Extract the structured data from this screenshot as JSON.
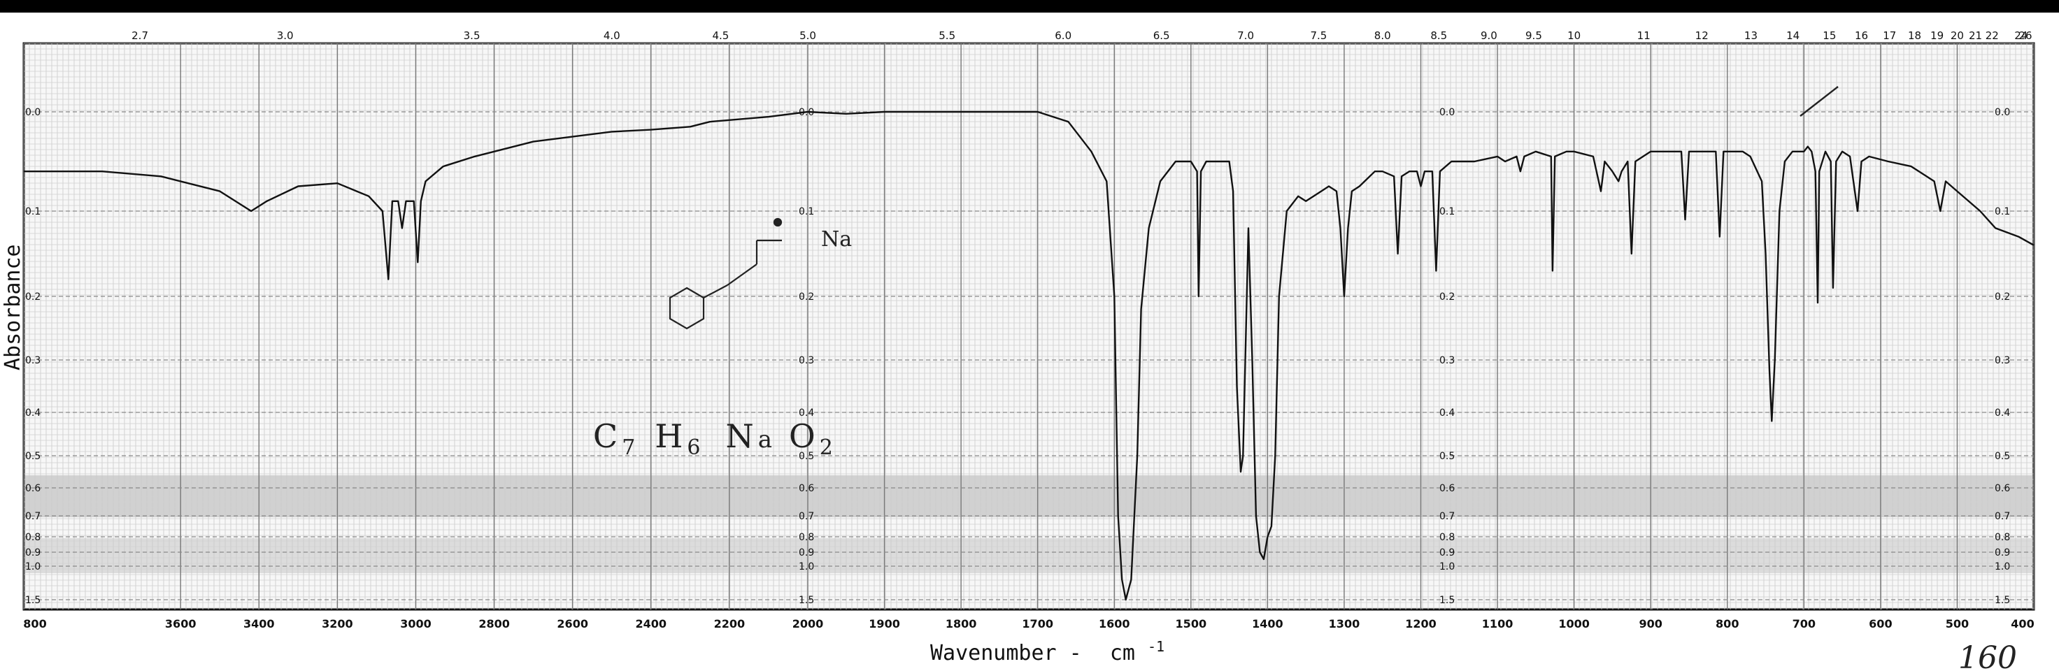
{
  "chart_data": {
    "type": "line",
    "xlabel": "Wavenumber -",
    "xlabel_unit": "cm",
    "xlabel_unit_sup": "-1",
    "ylabel": "Absorbance",
    "x_axis": "wavenumber (cm-1), descending left to right",
    "xlim": [
      4000,
      400
    ],
    "x_scale": "piecewise: 4000-2000 and 2000-400 at different spacing",
    "ylim": [
      0.0,
      1.5
    ],
    "y_scale": "absorbance, nonlinear spacing (transmittance grid)",
    "grid": true,
    "x_ticks_bottom": [
      "800",
      "3600",
      "3400",
      "3200",
      "3000",
      "2800",
      "2600",
      "2400",
      "2200",
      "2000",
      "1900",
      "1800",
      "1700",
      "1600",
      "1500",
      "1400",
      "1300",
      "1200",
      "1100",
      "1000",
      "900",
      "800",
      "700",
      "600",
      "500",
      "400"
    ],
    "x_ticks_top_microns": [
      "2.7",
      "3.0",
      "3.5",
      "4.0",
      "4.5",
      "5.0",
      "5.5",
      "6.0",
      "6.5",
      "7.0",
      "7.5",
      "8.0",
      "8.5",
      "9.0",
      "9.5",
      "10",
      "11",
      "12",
      "13",
      "14",
      "15",
      "16",
      "17",
      "18",
      "19",
      "20",
      "21",
      "22",
      "24",
      "26"
    ],
    "y_ticks_left": [
      "0.0",
      "0.1",
      "0.2",
      "0.3",
      "0.4",
      "0.5",
      "0.6",
      "0.7",
      "0.8",
      "0.9",
      "1.0",
      "1.5"
    ],
    "y_ticks_mid1": [
      "0.0",
      "0.1",
      "0.2",
      "0.3",
      "0.4",
      "0.5",
      "0.6",
      "0.7",
      "0.8",
      "0.9",
      "1.0",
      "1.5"
    ],
    "y_ticks_mid2": [
      "0.0",
      "0.1",
      "0.2",
      "0.3",
      "0.4",
      "0.5",
      "0.6",
      "0.7",
      "0.8",
      "0.9",
      "1.0",
      "1.5"
    ],
    "y_ticks_right": [
      "0.0",
      "0.1",
      "0.2",
      "0.3",
      "0.4",
      "0.5",
      "0.6",
      "0.7",
      "0.8",
      "0.9",
      "1.0",
      "1.5"
    ],
    "series": [
      {
        "color": "#111111",
        "points": [
          [
            4000,
            0.06
          ],
          [
            3800,
            0.06
          ],
          [
            3650,
            0.065
          ],
          [
            3500,
            0.08
          ],
          [
            3420,
            0.1
          ],
          [
            3380,
            0.09
          ],
          [
            3300,
            0.075
          ],
          [
            3200,
            0.072
          ],
          [
            3120,
            0.085
          ],
          [
            3085,
            0.1
          ],
          [
            3070,
            0.18
          ],
          [
            3060,
            0.09
          ],
          [
            3045,
            0.09
          ],
          [
            3035,
            0.12
          ],
          [
            3025,
            0.09
          ],
          [
            3005,
            0.09
          ],
          [
            2995,
            0.16
          ],
          [
            2987,
            0.09
          ],
          [
            2975,
            0.07
          ],
          [
            2930,
            0.055
          ],
          [
            2850,
            0.045
          ],
          [
            2700,
            0.03
          ],
          [
            2500,
            0.02
          ],
          [
            2400,
            0.018
          ],
          [
            2300,
            0.015
          ],
          [
            2250,
            0.01
          ],
          [
            2100,
            0.005
          ],
          [
            2000,
            0.0
          ],
          [
            1950,
            0.002
          ],
          [
            1900,
            0.0
          ],
          [
            1800,
            0.0
          ],
          [
            1700,
            0.0
          ],
          [
            1660,
            0.01
          ],
          [
            1630,
            0.04
          ],
          [
            1610,
            0.07
          ],
          [
            1600,
            0.2
          ],
          [
            1595,
            0.7
          ],
          [
            1590,
            1.2
          ],
          [
            1585,
            1.5
          ],
          [
            1578,
            1.2
          ],
          [
            1570,
            0.5
          ],
          [
            1565,
            0.22
          ],
          [
            1555,
            0.12
          ],
          [
            1540,
            0.07
          ],
          [
            1520,
            0.05
          ],
          [
            1500,
            0.05
          ],
          [
            1492,
            0.06
          ],
          [
            1490,
            0.2
          ],
          [
            1487,
            0.06
          ],
          [
            1480,
            0.05
          ],
          [
            1470,
            0.05
          ],
          [
            1450,
            0.05
          ],
          [
            1445,
            0.08
          ],
          [
            1440,
            0.35
          ],
          [
            1435,
            0.55
          ],
          [
            1432,
            0.5
          ],
          [
            1425,
            0.12
          ],
          [
            1420,
            0.3
          ],
          [
            1415,
            0.7
          ],
          [
            1410,
            0.9
          ],
          [
            1405,
            0.95
          ],
          [
            1400,
            0.8
          ],
          [
            1395,
            0.75
          ],
          [
            1390,
            0.5
          ],
          [
            1385,
            0.2
          ],
          [
            1375,
            0.1
          ],
          [
            1360,
            0.085
          ],
          [
            1350,
            0.09
          ],
          [
            1340,
            0.085
          ],
          [
            1330,
            0.08
          ],
          [
            1320,
            0.075
          ],
          [
            1310,
            0.08
          ],
          [
            1305,
            0.12
          ],
          [
            1300,
            0.2
          ],
          [
            1295,
            0.12
          ],
          [
            1290,
            0.08
          ],
          [
            1280,
            0.075
          ],
          [
            1260,
            0.06
          ],
          [
            1250,
            0.06
          ],
          [
            1235,
            0.065
          ],
          [
            1230,
            0.15
          ],
          [
            1225,
            0.065
          ],
          [
            1215,
            0.06
          ],
          [
            1205,
            0.06
          ],
          [
            1200,
            0.075
          ],
          [
            1195,
            0.06
          ],
          [
            1185,
            0.06
          ],
          [
            1180,
            0.17
          ],
          [
            1175,
            0.06
          ],
          [
            1160,
            0.05
          ],
          [
            1130,
            0.05
          ],
          [
            1100,
            0.045
          ],
          [
            1090,
            0.05
          ],
          [
            1075,
            0.045
          ],
          [
            1070,
            0.06
          ],
          [
            1065,
            0.045
          ],
          [
            1050,
            0.04
          ],
          [
            1030,
            0.045
          ],
          [
            1028,
            0.17
          ],
          [
            1025,
            0.045
          ],
          [
            1010,
            0.04
          ],
          [
            1000,
            0.04
          ],
          [
            975,
            0.045
          ],
          [
            965,
            0.08
          ],
          [
            960,
            0.05
          ],
          [
            950,
            0.06
          ],
          [
            942,
            0.07
          ],
          [
            938,
            0.06
          ],
          [
            930,
            0.05
          ],
          [
            925,
            0.15
          ],
          [
            920,
            0.05
          ],
          [
            900,
            0.04
          ],
          [
            870,
            0.04
          ],
          [
            860,
            0.04
          ],
          [
            855,
            0.11
          ],
          [
            850,
            0.04
          ],
          [
            830,
            0.04
          ],
          [
            815,
            0.04
          ],
          [
            810,
            0.13
          ],
          [
            805,
            0.04
          ],
          [
            780,
            0.04
          ],
          [
            770,
            0.045
          ],
          [
            755,
            0.07
          ],
          [
            750,
            0.15
          ],
          [
            745,
            0.32
          ],
          [
            742,
            0.42
          ],
          [
            738,
            0.3
          ],
          [
            732,
            0.1
          ],
          [
            725,
            0.05
          ],
          [
            715,
            0.04
          ],
          [
            700,
            0.04
          ],
          [
            695,
            0.035
          ],
          [
            690,
            0.04
          ],
          [
            685,
            0.06
          ],
          [
            682,
            0.21
          ],
          [
            680,
            0.06
          ],
          [
            672,
            0.04
          ],
          [
            665,
            0.05
          ],
          [
            662,
            0.19
          ],
          [
            658,
            0.05
          ],
          [
            650,
            0.04
          ],
          [
            640,
            0.045
          ],
          [
            630,
            0.1
          ],
          [
            625,
            0.05
          ],
          [
            615,
            0.045
          ],
          [
            590,
            0.05
          ],
          [
            560,
            0.055
          ],
          [
            540,
            0.065
          ],
          [
            530,
            0.07
          ],
          [
            522,
            0.1
          ],
          [
            515,
            0.07
          ],
          [
            500,
            0.08
          ],
          [
            470,
            0.1
          ],
          [
            450,
            0.12
          ],
          [
            420,
            0.13
          ],
          [
            400,
            0.14
          ]
        ]
      }
    ],
    "annotations": {
      "formula_parts": [
        "C",
        "7",
        "H",
        "6",
        "N",
        "a",
        "O",
        "2"
      ],
      "tick_mark_label": "Na",
      "bottom_right_handwriting": "160"
    }
  }
}
